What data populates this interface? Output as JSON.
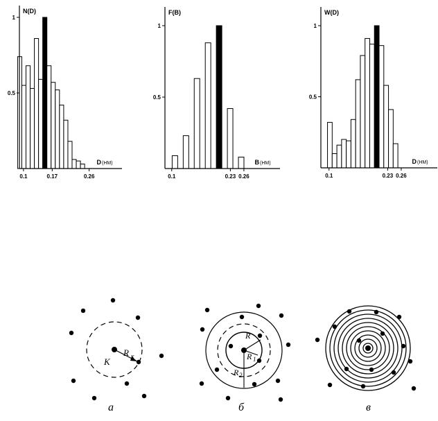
{
  "chart_data": [
    {
      "type": "bar",
      "title": "",
      "ylabel": "N(D)",
      "xlabel": "D",
      "xunit": "(НМ)",
      "ylim": [
        0,
        1
      ],
      "xlim": [
        0.085,
        0.34
      ],
      "bin_width": 0.0102,
      "x_ticks": [
        0.1,
        0.17,
        0.26
      ],
      "y_ticks": [
        0.5,
        1
      ],
      "x_tick_labels": [
        "0.1",
        "0.17",
        "0.26"
      ],
      "y_tick_labels": [
        "0.5",
        "1"
      ],
      "bar_starts": [
        0.0857,
        0.0959,
        0.1061,
        0.1163,
        0.1265,
        0.1367,
        0.1469,
        0.1571,
        0.1673,
        0.1775,
        0.1878,
        0.198,
        0.2082,
        0.2184,
        0.2286,
        0.2388,
        0.249
      ],
      "values": [
        0.74,
        0.55,
        0.68,
        0.53,
        0.86,
        0.59,
        1.0,
        0.68,
        0.57,
        0.52,
        0.42,
        0.32,
        0.18,
        0.06,
        0.05,
        0.03,
        0.0
      ],
      "highlight_index": 6
    },
    {
      "type": "bar",
      "title": "",
      "ylabel": "F(B)",
      "xlabel": "B",
      "xunit": "(НМ)",
      "ylim": [
        0,
        1
      ],
      "xlim": [
        0.085,
        0.34
      ],
      "bin_width": 0.0122,
      "x_ticks": [
        0.1,
        0.23,
        0.26
      ],
      "y_ticks": [
        0.5,
        1
      ],
      "x_tick_labels": [
        "0.1",
        "0.23",
        "0.26"
      ],
      "y_tick_labels": [
        "0.5",
        "1"
      ],
      "bar_starts": [
        0.101,
        0.1255,
        0.1499,
        0.1744,
        0.1989,
        0.2234,
        0.2479,
        0.2724
      ],
      "values": [
        0.09,
        0.23,
        0.63,
        0.88,
        1.0,
        0.42,
        0.08,
        0.0
      ],
      "highlight_index": 4
    },
    {
      "type": "bar",
      "title": "",
      "ylabel": "W(D)",
      "xlabel": "D",
      "xunit": "(НМ)",
      "ylim": [
        0,
        1
      ],
      "xlim": [
        0.085,
        0.34
      ],
      "bin_width": 0.0104,
      "x_ticks": [
        0.1,
        0.23,
        0.26
      ],
      "y_ticks": [
        0.5,
        1
      ],
      "x_tick_labels": [
        "0.1",
        "0.23",
        "0.26"
      ],
      "y_tick_labels": [
        "0.5",
        "1"
      ],
      "bar_starts": [
        0.0966,
        0.107,
        0.1174,
        0.1278,
        0.1382,
        0.1486,
        0.159,
        0.1694,
        0.1798,
        0.1902,
        0.2006,
        0.211,
        0.2214,
        0.2318,
        0.2422,
        0.2526,
        0.263
      ],
      "values": [
        0.32,
        0.1,
        0.16,
        0.2,
        0.19,
        0.34,
        0.62,
        0.79,
        0.91,
        0.87,
        1.0,
        0.86,
        0.58,
        0.41,
        0.17,
        0.0,
        0.0
      ],
      "highlight_index": 10
    }
  ],
  "diagrams": {
    "panels": [
      {
        "caption": "а",
        "labels": [
          "R",
          "к",
          "К"
        ]
      },
      {
        "caption": "б",
        "labels": [
          "R",
          "R",
          "R"
        ],
        "sublabels": [
          "",
          "1",
          "2"
        ]
      },
      {
        "caption": "в",
        "labels": []
      }
    ]
  }
}
